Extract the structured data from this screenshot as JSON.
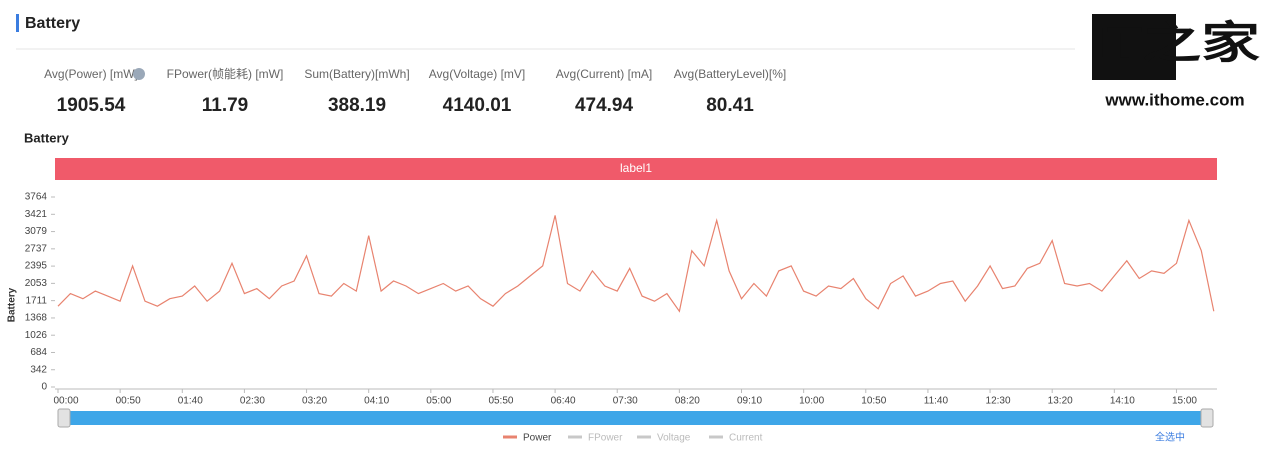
{
  "header": {
    "title": "Battery"
  },
  "logo": {
    "mark": "IT之家",
    "url": "www.ithome.com"
  },
  "stats": [
    {
      "label": "Avg(Power) [mW]",
      "value": 1905.54
    },
    {
      "label": "FPower(帧能耗) [mW]",
      "value": 11.79
    },
    {
      "label": "Sum(Battery)[mWh]",
      "value": 388.19
    },
    {
      "label": "Avg(Voltage) [mV]",
      "value": 4140.01
    },
    {
      "label": "Avg(Current) [mA]",
      "value": 474.94
    },
    {
      "label": "Avg(BatteryLevel)[%]",
      "value": 80.41
    }
  ],
  "chart_data": {
    "type": "line",
    "title": "Battery",
    "band_label": "label1",
    "band_color": "#f05a6a",
    "ylabel": "Battery",
    "ylim": [
      0,
      3764
    ],
    "yticks": [
      0,
      342,
      684,
      1026,
      1368,
      1711,
      2053,
      2395,
      2737,
      3079,
      3421,
      3764
    ],
    "xlim": [
      0,
      931
    ],
    "xticks": [
      {
        "value": 0,
        "label": "00:00"
      },
      {
        "value": 50,
        "label": "00:50"
      },
      {
        "value": 100,
        "label": "01:40"
      },
      {
        "value": 150,
        "label": "02:30"
      },
      {
        "value": 200,
        "label": "03:20"
      },
      {
        "value": 250,
        "label": "04:10"
      },
      {
        "value": 300,
        "label": "05:00"
      },
      {
        "value": 350,
        "label": "05:50"
      },
      {
        "value": 400,
        "label": "06:40"
      },
      {
        "value": 450,
        "label": "07:30"
      },
      {
        "value": 500,
        "label": "08:20"
      },
      {
        "value": 550,
        "label": "09:10"
      },
      {
        "value": 600,
        "label": "10:00"
      },
      {
        "value": 650,
        "label": "10:50"
      },
      {
        "value": 700,
        "label": "11:40"
      },
      {
        "value": 750,
        "label": "12:30"
      },
      {
        "value": 800,
        "label": "13:20"
      },
      {
        "value": 850,
        "label": "14:10"
      },
      {
        "value": 900,
        "label": "15:00"
      }
    ],
    "x": [
      0,
      10,
      20,
      30,
      40,
      50,
      60,
      70,
      80,
      90,
      100,
      110,
      120,
      130,
      140,
      150,
      160,
      170,
      180,
      190,
      200,
      210,
      220,
      230,
      240,
      250,
      260,
      270,
      280,
      290,
      300,
      310,
      320,
      330,
      340,
      350,
      360,
      370,
      380,
      390,
      400,
      410,
      420,
      430,
      440,
      450,
      460,
      470,
      480,
      490,
      500,
      510,
      520,
      530,
      540,
      550,
      560,
      570,
      580,
      590,
      600,
      610,
      620,
      630,
      640,
      650,
      660,
      670,
      680,
      690,
      700,
      710,
      720,
      730,
      740,
      750,
      760,
      770,
      780,
      790,
      800,
      810,
      820,
      830,
      840,
      850,
      860,
      870,
      880,
      890,
      900,
      910,
      920,
      930
    ],
    "series": [
      {
        "name": "Power",
        "color": "#e8836f",
        "visible": true,
        "values": [
          1600,
          1850,
          1750,
          1900,
          1800,
          1700,
          2400,
          1700,
          1600,
          1750,
          1800,
          2000,
          1700,
          1900,
          2450,
          1850,
          1950,
          1750,
          2000,
          2100,
          2600,
          1850,
          1800,
          2050,
          1900,
          3000,
          1900,
          2100,
          2000,
          1850,
          1950,
          2050,
          1900,
          2000,
          1750,
          1600,
          1850,
          2000,
          2200,
          2400,
          3400,
          2050,
          1900,
          2300,
          2000,
          1900,
          2350,
          1800,
          1700,
          1850,
          1500,
          2700,
          2400,
          3300,
          2300,
          1750,
          2050,
          1800,
          2300,
          2400,
          1900,
          1800,
          2000,
          1950,
          2150,
          1750,
          1550,
          2050,
          2200,
          1800,
          1900,
          2050,
          2100,
          1700,
          2000,
          2400,
          1950,
          2000,
          2350,
          2450,
          2900,
          2050,
          2000,
          2050,
          1900,
          2200,
          2500,
          2150,
          2300,
          2250,
          2450,
          3300,
          2700,
          1500
        ]
      },
      {
        "name": "FPower",
        "color": "#c8c8c8",
        "visible": false
      },
      {
        "name": "Voltage",
        "color": "#c8c8c8",
        "visible": false
      },
      {
        "name": "Current",
        "color": "#c8c8c8",
        "visible": false
      }
    ],
    "select_all": "全选中"
  }
}
